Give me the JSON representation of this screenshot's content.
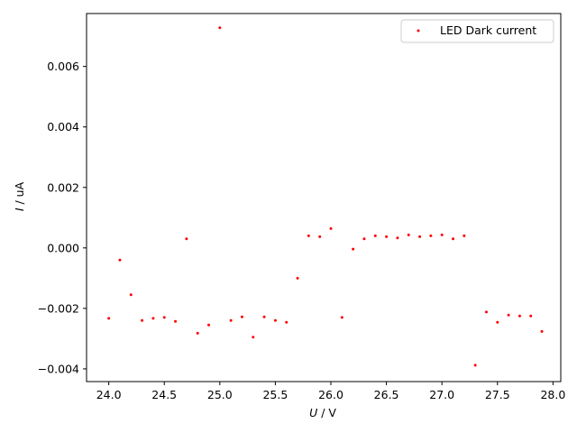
{
  "chart_data": {
    "type": "scatter",
    "xlabel_var": "U",
    "xlabel_unit": " / V",
    "ylabel_var": "I",
    "ylabel_unit": " / uA",
    "xlim": [
      23.8,
      28.07
    ],
    "ylim": [
      -0.00442,
      0.00775
    ],
    "xticks": [
      24.0,
      24.5,
      25.0,
      25.5,
      26.0,
      26.5,
      27.0,
      27.5,
      28.0
    ],
    "xtick_labels": [
      "24.0",
      "24.5",
      "25.0",
      "25.5",
      "26.0",
      "26.5",
      "27.0",
      "27.5",
      "28.0"
    ],
    "yticks": [
      -0.004,
      -0.002,
      0.0,
      0.002,
      0.004,
      0.006
    ],
    "ytick_labels": [
      "−0.004",
      "−0.002",
      "0.000",
      "0.002",
      "0.004",
      "0.006"
    ],
    "legend": {
      "placement": "upper-right",
      "entries": [
        "LED Dark current"
      ]
    },
    "grid": false,
    "series": [
      {
        "name": "LED Dark current",
        "color": "#ff0000",
        "marker": "dot",
        "points": [
          [
            24.0,
            -0.00233
          ],
          [
            24.1,
            -0.0004
          ],
          [
            24.2,
            -0.00155
          ],
          [
            24.3,
            -0.0024
          ],
          [
            24.4,
            -0.00233
          ],
          [
            24.5,
            -0.0023
          ],
          [
            24.6,
            -0.00243
          ],
          [
            24.7,
            0.0003
          ],
          [
            24.8,
            -0.00282
          ],
          [
            24.9,
            -0.00255
          ],
          [
            25.0,
            0.00728
          ],
          [
            25.1,
            -0.0024
          ],
          [
            25.2,
            -0.00228
          ],
          [
            25.3,
            -0.00295
          ],
          [
            25.4,
            -0.00228
          ],
          [
            25.5,
            -0.0024
          ],
          [
            25.6,
            -0.00246
          ],
          [
            25.7,
            -0.001
          ],
          [
            25.8,
            0.0004
          ],
          [
            25.9,
            0.00037
          ],
          [
            26.0,
            0.00064
          ],
          [
            26.1,
            -0.0023
          ],
          [
            26.2,
            -4e-05
          ],
          [
            26.3,
            0.0003
          ],
          [
            26.4,
            0.0004
          ],
          [
            26.5,
            0.00037
          ],
          [
            26.6,
            0.00033
          ],
          [
            26.7,
            0.00043
          ],
          [
            26.8,
            0.00037
          ],
          [
            26.9,
            0.0004
          ],
          [
            27.0,
            0.00043
          ],
          [
            27.1,
            0.0003
          ],
          [
            27.2,
            0.0004
          ],
          [
            27.3,
            -0.00388
          ],
          [
            27.4,
            -0.00212
          ],
          [
            27.5,
            -0.00246
          ],
          [
            27.6,
            -0.00222
          ],
          [
            27.7,
            -0.00225
          ],
          [
            27.8,
            -0.00225
          ],
          [
            27.9,
            -0.00276
          ]
        ]
      }
    ]
  }
}
